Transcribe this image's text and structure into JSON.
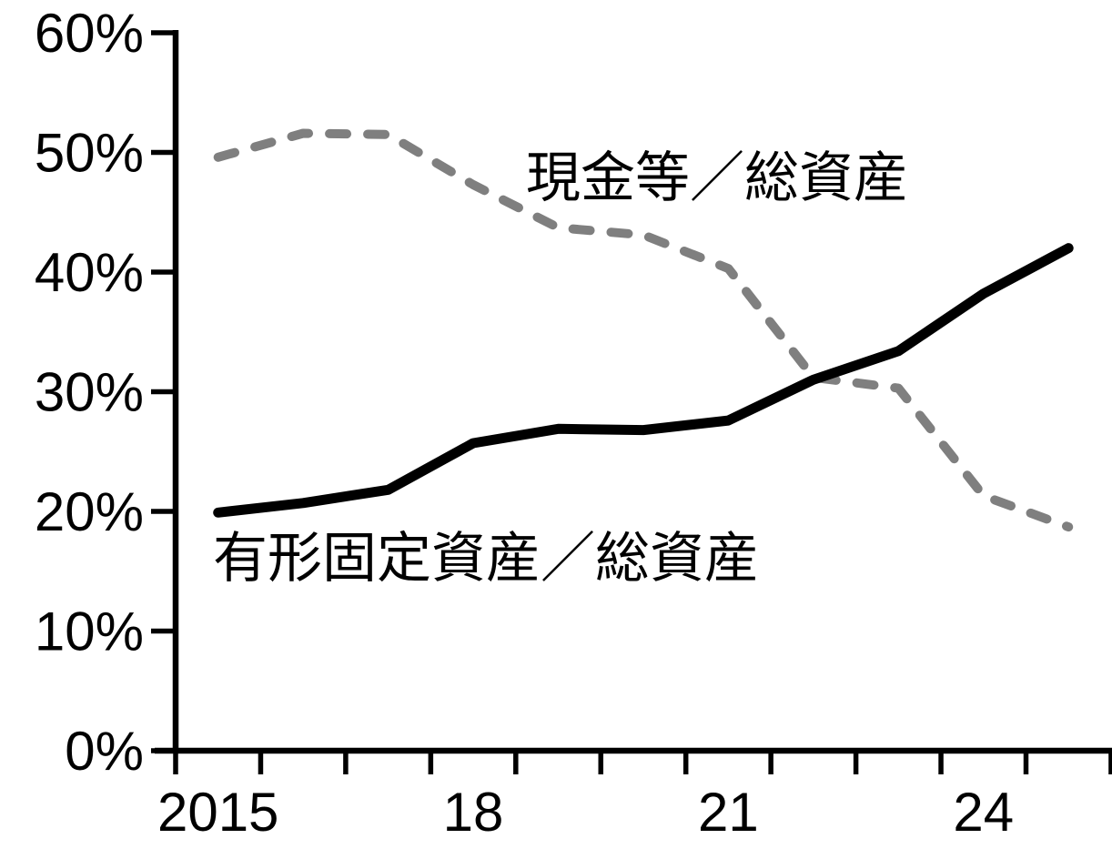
{
  "chart_data": {
    "type": "line",
    "title": "",
    "xlabel": "",
    "ylabel": "",
    "x": [
      2015,
      2016,
      2017,
      2018,
      2019,
      2020,
      2021,
      2022,
      2023,
      2024,
      2025
    ],
    "series": [
      {
        "name": "現金等／総資産",
        "style": "dashed",
        "color": "#7f7f7f",
        "values": [
          49.6,
          51.6,
          51.5,
          47.3,
          43.7,
          43.1,
          40.3,
          31.2,
          30.3,
          21.3,
          18.7
        ]
      },
      {
        "name": "有形固定資産／総資産",
        "style": "solid",
        "color": "#000000",
        "values": [
          19.9,
          20.7,
          21.8,
          25.7,
          26.9,
          26.8,
          27.6,
          31.0,
          33.4,
          38.2,
          42.0
        ]
      }
    ],
    "ylim": [
      0,
      60
    ],
    "y_ticks": [
      {
        "value": 0,
        "label": "0%"
      },
      {
        "value": 10,
        "label": "10%"
      },
      {
        "value": 20,
        "label": "20%"
      },
      {
        "value": 30,
        "label": "30%"
      },
      {
        "value": 40,
        "label": "40%"
      },
      {
        "value": 50,
        "label": "50%"
      },
      {
        "value": 60,
        "label": "60%"
      }
    ],
    "x_tick_labels": [
      {
        "index": 0,
        "label": "2015"
      },
      {
        "index": 3,
        "label": "18"
      },
      {
        "index": 6,
        "label": "21"
      },
      {
        "index": 9,
        "label": "24"
      }
    ],
    "grid": false,
    "legend_position": "inline-annotations"
  },
  "annotations": {
    "cash_label": "現金等／総資産",
    "tangible_label": "有形固定資産／総資産"
  },
  "colors": {
    "axis": "#000000",
    "dashed_series": "#7f7f7f",
    "solid_series": "#000000",
    "background": "#ffffff"
  }
}
